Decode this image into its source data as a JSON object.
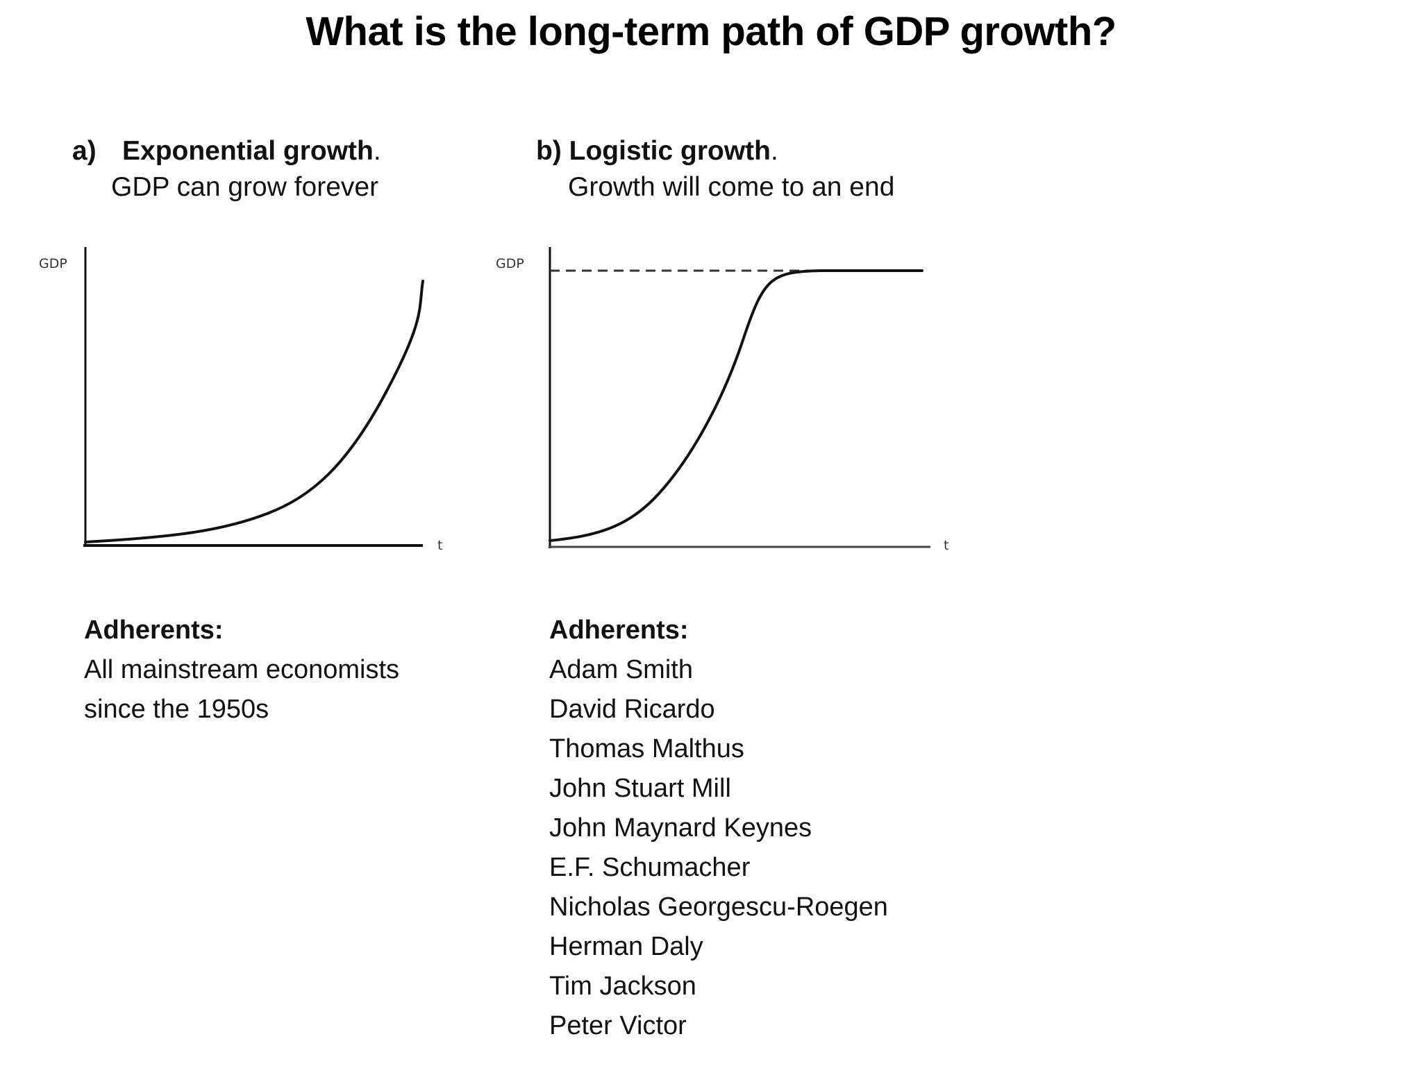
{
  "title": "What is the long-term path of GDP growth?",
  "panels": [
    {
      "letter": "a)",
      "label": "Exponential growth",
      "label_suffix": ".",
      "subtitle": "GDP can grow forever",
      "chart": {
        "type": "line",
        "curve": "exponential",
        "ylabel": "GDP",
        "xlabel": "t"
      },
      "adherents_heading": "Adherents:",
      "adherents": [
        "All mainstream economists",
        "since the 1950s"
      ]
    },
    {
      "letter": "b)",
      "label": "Logistic growth",
      "label_suffix": ".",
      "subtitle": "Growth will come to an end",
      "chart": {
        "type": "line",
        "curve": "logistic",
        "ylabel": "GDP",
        "xlabel": "t",
        "asymptote": "dashed horizontal line at the ceiling"
      },
      "adherents_heading": "Adherents:",
      "adherents": [
        "Adam Smith",
        "David Ricardo",
        "Thomas Malthus",
        "John Stuart Mill",
        "John Maynard Keynes",
        "E.F. Schumacher",
        "Nicholas Georgescu-Roegen",
        "Herman Daly",
        "Tim Jackson",
        "Peter Victor"
      ]
    }
  ],
  "colors": {
    "text": "#111111",
    "curve": "#111111",
    "axis": "#111111",
    "dashed_asymptote": "#333333"
  }
}
